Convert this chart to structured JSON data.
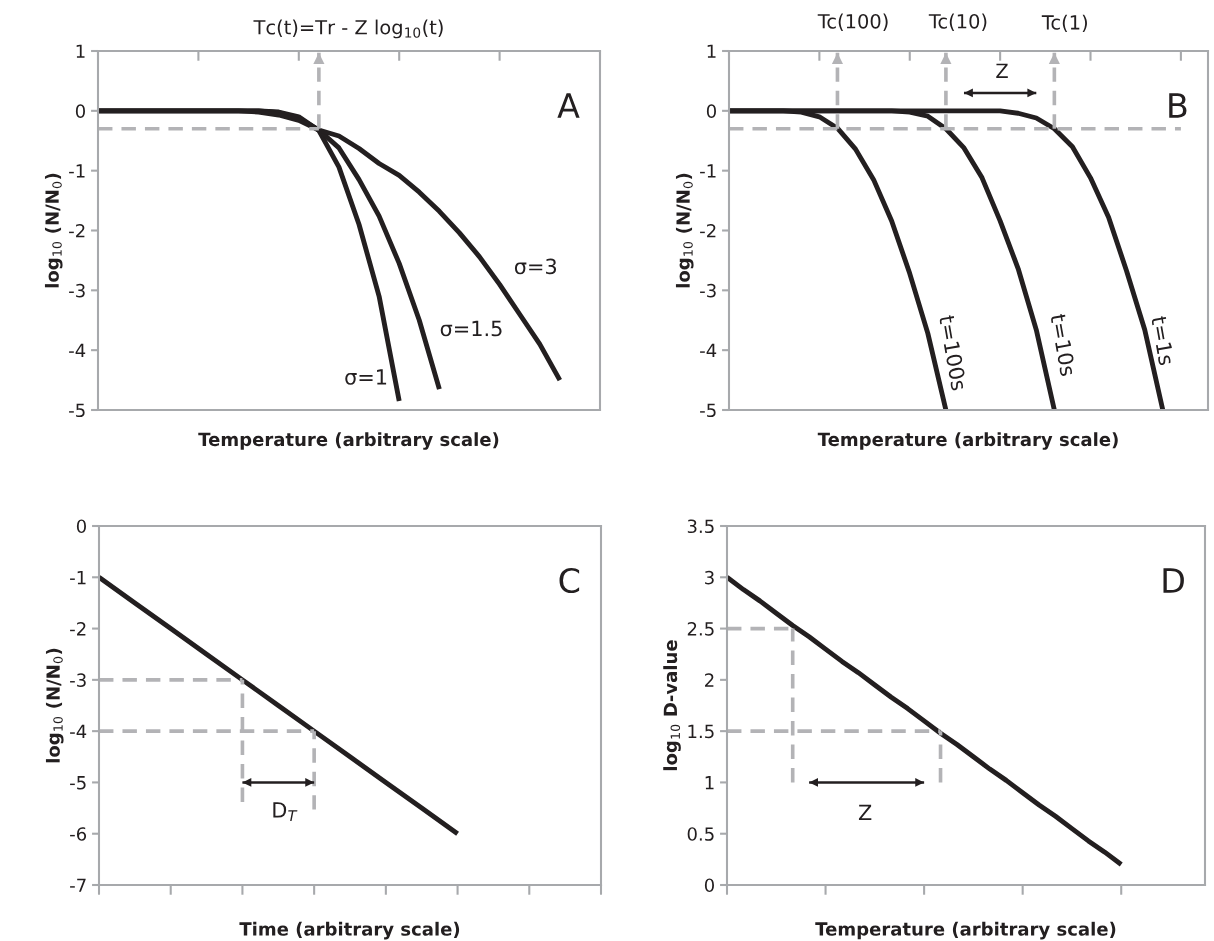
{
  "chart_data": [
    {
      "type": "line",
      "title": "Tc(t)=Tr - Z log$_{10}$(t)",
      "xlabel": "Temperature (arbitrary scale)",
      "ylabel": "log$_{10}$ (N/N$_{0}$)",
      "categories": [
        null,
        null,
        null,
        null,
        null,
        null,
        null,
        null,
        null,
        null,
        null,
        null,
        null,
        null,
        null,
        null,
        null,
        null,
        null,
        null,
        null,
        null,
        null,
        null,
        null,
        null
      ],
      "ylim": [
        -5,
        1
      ],
      "yticks": [
        -5,
        -4,
        -3,
        -2,
        -1,
        0,
        1
      ],
      "series": [
        {
          "color": "#231f20",
          "line_style": "solid",
          "values": [
            0,
            0,
            0,
            0,
            0,
            0,
            0,
            0,
            0,
            -0.02,
            -0.1,
            -0.33,
            -0.94,
            -1.9,
            -3.1,
            -4.85,
            null,
            null,
            null,
            null,
            null,
            null,
            null,
            null,
            null,
            null
          ]
        },
        {
          "color": "#231f20",
          "line_style": "solid",
          "values": [
            0,
            0,
            0,
            0,
            0,
            0,
            0,
            0,
            0,
            -0.03,
            -0.12,
            -0.32,
            -0.62,
            -1.15,
            -1.76,
            -2.55,
            -3.5,
            -4.65,
            null,
            null,
            null,
            null,
            null,
            null,
            null,
            null
          ]
        },
        {
          "color": "#231f20",
          "line_style": "solid",
          "values": [
            0,
            0,
            0,
            0,
            0,
            0,
            0,
            0,
            -0.02,
            -0.07,
            -0.16,
            -0.32,
            -0.42,
            -0.63,
            -0.88,
            -1.08,
            -1.36,
            -1.68,
            -2.04,
            -2.44,
            -2.9,
            -3.4,
            -3.9,
            -4.5,
            null,
            null
          ]
        },
        {
          "color": "#b3b3b6",
          "line_style": "dashed",
          "values": [
            -0.3,
            -0.3,
            -0.3,
            -0.3,
            -0.3,
            -0.3,
            -0.3,
            -0.3,
            -0.3,
            -0.3,
            -0.3,
            -0.3,
            null,
            null,
            null,
            null,
            null,
            null,
            null,
            null,
            null,
            null,
            null,
            null,
            null,
            null
          ],
          "errors": [
            null,
            null,
            null,
            null,
            null,
            null,
            null,
            null,
            null,
            null,
            null,
            [
              -0.3,
              0.97
            ],
            null,
            null,
            null,
            null,
            null,
            null,
            null,
            null,
            null,
            null,
            null,
            null,
            null,
            null
          ]
        }
      ],
      "annotations": [
        "A",
        "σ=3",
        "σ=1.5",
        "σ=1"
      ]
    },
    {
      "type": "line",
      "xlabel": "Temperature (arbitrary scale)",
      "ylabel": "log$_{10}$ (N/N$_{0}$)",
      "categories": [
        null,
        null,
        null,
        null,
        null,
        null,
        null,
        null,
        null,
        null,
        null,
        null,
        null,
        null,
        null,
        null,
        null,
        null,
        null,
        null,
        null,
        null,
        null,
        null,
        null,
        null
      ],
      "ylim": [
        -5,
        1
      ],
      "yticks": [
        -5,
        -4,
        -3,
        -2,
        -1,
        0,
        1
      ],
      "series": [
        {
          "color": "#231f20",
          "line_style": "solid",
          "values": [
            0,
            0,
            0,
            0,
            -0.02,
            -0.1,
            -0.29,
            -0.64,
            -1.15,
            -1.84,
            -2.72,
            -3.72,
            -5,
            null,
            null,
            null,
            null,
            null,
            null,
            null,
            null,
            null,
            null,
            null,
            null,
            null
          ]
        },
        {
          "color": "#231f20",
          "line_style": "solid",
          "values": [
            0,
            0,
            0,
            0,
            0,
            0,
            0,
            0,
            0,
            0,
            -0.02,
            -0.09,
            -0.3,
            -0.62,
            -1.12,
            -1.84,
            -2.64,
            -3.66,
            -5,
            null,
            null,
            null,
            null,
            null,
            null,
            null
          ]
        },
        {
          "color": "#231f20",
          "line_style": "solid",
          "values": [
            0,
            0,
            0,
            0,
            0,
            0,
            0,
            0,
            0,
            0,
            0,
            0,
            0,
            0,
            0,
            0,
            -0.04,
            -0.12,
            -0.3,
            -0.6,
            -1.12,
            -1.78,
            -2.68,
            -3.66,
            -5,
            null
          ]
        },
        {
          "color": "#b3b3b6",
          "line_style": "dashed",
          "values": [
            -0.3,
            -0.3,
            -0.3,
            -0.3,
            -0.3,
            -0.3,
            -0.3,
            -0.3,
            -0.3,
            -0.3,
            -0.3,
            -0.3,
            -0.3,
            -0.3,
            -0.3,
            -0.3,
            -0.3,
            -0.3,
            -0.3,
            -0.3,
            -0.3,
            -0.3,
            -0.3,
            -0.3,
            -0.3,
            -0.3
          ],
          "errors": [
            null,
            null,
            null,
            null,
            null,
            null,
            [
              -0.3,
              0.97
            ],
            null,
            null,
            null,
            null,
            null,
            [
              -0.3,
              0.97
            ],
            null,
            null,
            null,
            null,
            null,
            [
              -0.3,
              0.97
            ],
            null,
            null,
            null,
            null,
            null,
            null,
            null
          ]
        },
        {
          "color": "#231f20",
          "line_style": "solid",
          "values": [
            null,
            null,
            null,
            null,
            null,
            null,
            null,
            null,
            null,
            null,
            null,
            null,
            null,
            0.3,
            0.3,
            0.3,
            0.3,
            0.3,
            null,
            null,
            null,
            null,
            null,
            null,
            null,
            null
          ]
        }
      ],
      "annotations": [
        "B",
        "Z",
        "Tc(100)",
        "Tc(10)",
        "Tc(1)",
        "t=100s",
        "t=10s",
        "t=1s"
      ]
    },
    {
      "type": "line",
      "xlabel": "Time (arbitrary scale)",
      "ylabel": "log$_{10}$ (N/N$_{0}$)",
      "categories": [
        null,
        null,
        null,
        null,
        null,
        null,
        null,
        null,
        null,
        null,
        null,
        null,
        null,
        null,
        null
      ],
      "ylim": [
        -7,
        0
      ],
      "yticks": [
        -7,
        -6,
        -5,
        -4,
        -3,
        -2,
        -1,
        0
      ],
      "series": [
        {
          "color": "#231f20",
          "line_style": "solid",
          "values": [
            -1,
            -1.5,
            -2,
            -2.5,
            -3,
            -3.5,
            -4,
            -4.5,
            -5,
            -5.5,
            -6,
            null,
            null,
            null,
            null
          ]
        },
        {
          "color": "#b3b3b6",
          "line_style": "dashed",
          "values": [
            -3,
            -3,
            -3,
            -3,
            -3,
            null,
            null,
            null,
            null,
            null,
            null,
            null,
            null,
            null,
            null
          ],
          "errors": [
            null,
            null,
            null,
            null,
            [
              -5.38,
              -3
            ],
            null,
            null,
            null,
            null,
            null,
            null,
            null,
            null,
            null,
            null
          ]
        },
        {
          "color": "#b3b3b6",
          "line_style": "dashed",
          "values": [
            -4,
            -4,
            -4,
            -4,
            -4,
            -4,
            -4,
            null,
            null,
            null,
            null,
            null,
            null,
            null,
            null
          ],
          "errors": [
            null,
            null,
            null,
            null,
            null,
            null,
            [
              -5.53,
              -4
            ],
            null,
            null,
            null,
            null,
            null,
            null,
            null,
            null
          ]
        },
        {
          "color": "#231f20",
          "line_style": "solid",
          "values": [
            null,
            null,
            null,
            null,
            -5,
            -5,
            -5,
            null,
            null,
            null,
            null,
            null,
            null,
            null,
            null
          ]
        }
      ],
      "annotations": [
        "C",
        "D$_{T}$"
      ]
    },
    {
      "type": "line",
      "xlabel": "Temperature (arbitrary scale)",
      "ylabel": "log$_{10}$ D-value",
      "categories": [
        null,
        null,
        null,
        null,
        null,
        null,
        null,
        null,
        null,
        null,
        null,
        null,
        null,
        null,
        null,
        null,
        null,
        null,
        null,
        null,
        null,
        null,
        null,
        null,
        null
      ],
      "ylim": [
        0,
        3.5
      ],
      "yticks": [
        0,
        0.5,
        1,
        1.5,
        2,
        2.5,
        3,
        3.5
      ],
      "series": [
        {
          "color": "#231f20",
          "line_style": "solid",
          "values": [
            3,
            2.88,
            2.77,
            2.65,
            2.53,
            2.42,
            2.3,
            2.18,
            2.07,
            1.95,
            1.83,
            1.72,
            1.6,
            1.48,
            1.37,
            1.25,
            1.13,
            1.02,
            0.9,
            0.78,
            0.67,
            0.55,
            0.43,
            0.32,
            0.2
          ]
        },
        {
          "color": "#b3b3b6",
          "line_style": "dashed",
          "values": [
            2.5,
            2.5,
            2.5,
            2.5,
            2.5,
            null,
            null,
            null,
            null,
            null,
            null,
            null,
            null,
            null,
            null,
            null,
            null,
            null,
            null,
            null,
            null,
            null,
            null,
            null,
            null
          ],
          "errors": [
            null,
            null,
            null,
            null,
            [
              1.0,
              2.5
            ],
            null,
            null,
            null,
            null,
            null,
            null,
            null,
            null,
            null,
            null,
            null,
            null,
            null,
            null,
            null,
            null,
            null,
            null,
            null,
            null
          ]
        },
        {
          "color": "#b3b3b6",
          "line_style": "dashed",
          "values": [
            1.5,
            1.5,
            1.5,
            1.5,
            1.5,
            1.5,
            1.5,
            1.5,
            1.5,
            1.5,
            1.5,
            1.5,
            1.5,
            1.5,
            null,
            null,
            null,
            null,
            null,
            null,
            null,
            null,
            null,
            null,
            null
          ],
          "errors": [
            null,
            null,
            null,
            null,
            null,
            null,
            null,
            null,
            null,
            null,
            null,
            null,
            null,
            [
              1.0,
              1.5
            ],
            null,
            null,
            null,
            null,
            null,
            null,
            null,
            null,
            null,
            null,
            null
          ]
        },
        {
          "color": "#231f20",
          "line_style": "solid",
          "values": [
            null,
            null,
            null,
            null,
            null,
            1.0,
            1.0,
            1.0,
            1.0,
            1.0,
            1.0,
            1.0,
            1.0,
            null,
            null,
            null,
            null,
            null,
            null,
            null,
            null,
            null,
            null,
            null,
            null
          ]
        }
      ],
      "annotations": [
        "D",
        "Z"
      ]
    }
  ]
}
